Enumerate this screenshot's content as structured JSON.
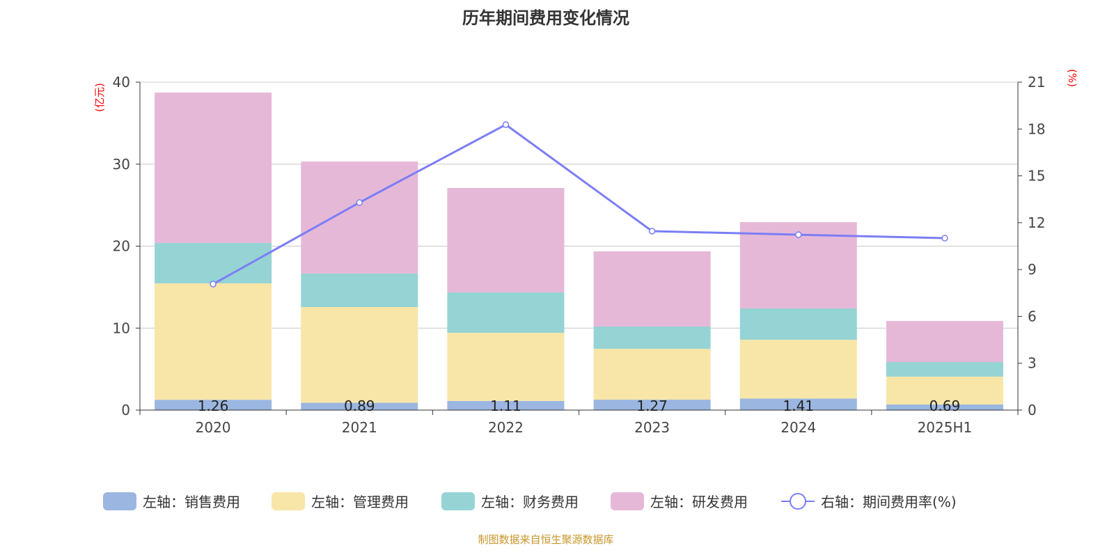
{
  "title": "历年期间费用变化情况",
  "source": "制图数据来自恒生聚源数据库",
  "chart_data": {
    "type": "bar",
    "stacked": true,
    "title": "历年期间费用变化情况",
    "categories": [
      "2020",
      "2021",
      "2022",
      "2023",
      "2024",
      "2025H1"
    ],
    "ylabel": "(亿元)",
    "ylim": [
      0,
      40
    ],
    "yticks": [
      0,
      10,
      20,
      30,
      40
    ],
    "y2label": "(%)",
    "y2lim": [
      0,
      21
    ],
    "y2ticks": [
      0,
      3,
      6,
      9,
      12,
      15,
      18,
      21
    ],
    "grid": true,
    "legend": "bottom",
    "series": [
      {
        "name": "左轴：销售费用",
        "axis": "left",
        "type": "bar",
        "color": "#9bb6e0",
        "values": [
          1.26,
          0.89,
          1.11,
          1.27,
          1.41,
          0.69
        ],
        "labels": [
          "1.26",
          "0.89",
          "1.11",
          "1.27",
          "1.41",
          "0.69"
        ]
      },
      {
        "name": "左轴：管理费用",
        "axis": "left",
        "type": "bar",
        "color": "#f7e6a8",
        "values": [
          14.2,
          11.68,
          8.32,
          6.2,
          7.17,
          3.39
        ]
      },
      {
        "name": "左轴：财务费用",
        "axis": "left",
        "type": "bar",
        "color": "#96d3d4",
        "values": [
          4.92,
          4.08,
          4.92,
          2.72,
          3.82,
          1.78
        ]
      },
      {
        "name": "左轴：研发费用",
        "axis": "left",
        "type": "bar",
        "color": "#e6b8d8",
        "values": [
          18.35,
          13.67,
          12.74,
          9.17,
          10.53,
          5.01
        ]
      },
      {
        "name": "右轴：期间费用率(%)",
        "axis": "right",
        "type": "line",
        "color": "#7b7ef5",
        "values": [
          8.07,
          13.29,
          18.28,
          11.46,
          11.23,
          11.01
        ]
      }
    ]
  }
}
